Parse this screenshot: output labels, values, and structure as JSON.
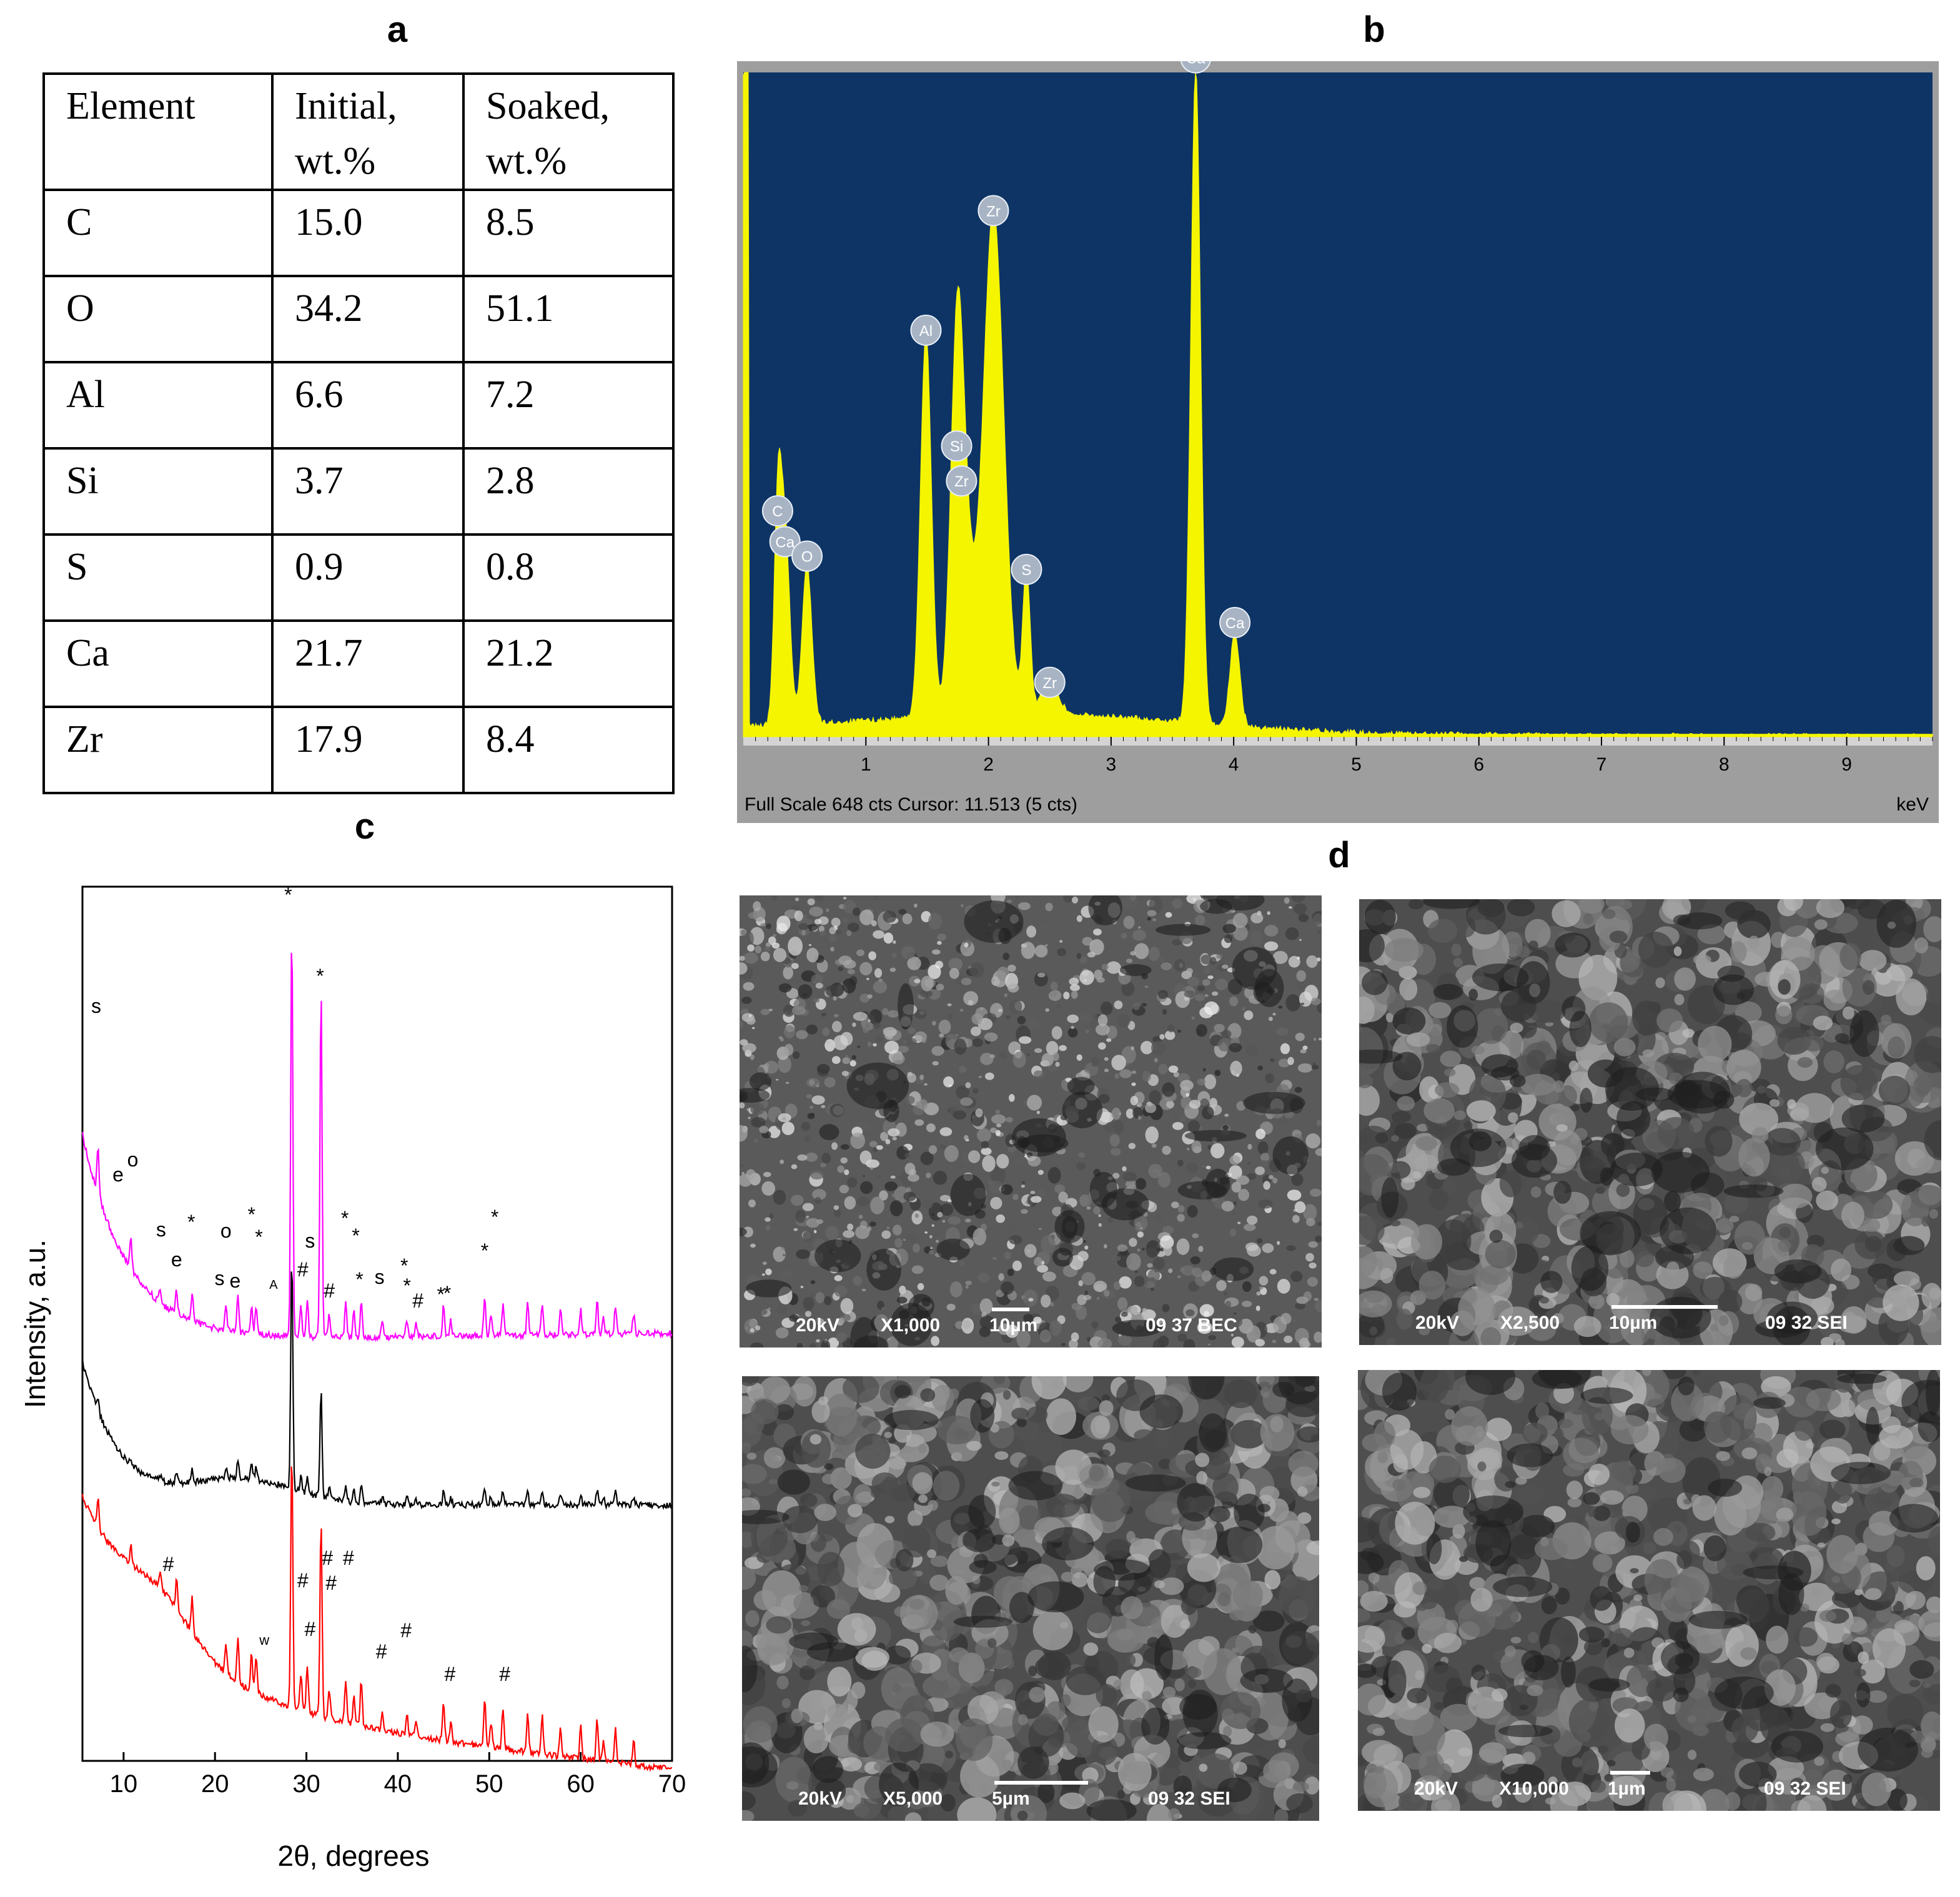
{
  "panel_labels": {
    "a": "a",
    "b": "b",
    "c": "c",
    "d": "d"
  },
  "table": {
    "headers": [
      "Element",
      "Initial,\nwt.%",
      "Soaked,\nwt.%"
    ],
    "rows": [
      [
        "C",
        "15.0",
        "8.5"
      ],
      [
        "O",
        "34.2",
        "51.1"
      ],
      [
        "Al",
        "6.6",
        "7.2"
      ],
      [
        "Si",
        "3.7",
        "2.8"
      ],
      [
        "S",
        "0.9",
        "0.8"
      ],
      [
        "Ca",
        "21.7",
        "21.2"
      ],
      [
        "Zr",
        "17.9",
        "8.4"
      ]
    ]
  },
  "chart_data": [
    {
      "type": "line",
      "panel": "b",
      "title": "",
      "xlabel": "keV",
      "status_text": "Full Scale 648 cts Cursor: 11.513  (5 cts)",
      "xlim": [
        0,
        9.7
      ],
      "x_ticks": [
        "1",
        "2",
        "3",
        "4",
        "5",
        "6",
        "7",
        "8",
        "9"
      ],
      "colors": {
        "plot_bg": "#0d3465",
        "spectrum": "#f5f500",
        "frame": "#9e9e9e"
      },
      "peaks": [
        {
          "label": "C",
          "kev": 0.28,
          "height": 0.295
        },
        {
          "label": "Ca",
          "kev": 0.34,
          "height": 0.29
        },
        {
          "label": "O",
          "kev": 0.52,
          "height": 0.24
        },
        {
          "label": "Al",
          "kev": 1.49,
          "height": 0.58
        },
        {
          "label": "Si",
          "kev": 1.74,
          "height": 0.34
        },
        {
          "label": "Zr",
          "kev": 1.78,
          "height": 0.34
        },
        {
          "label": "Zr",
          "kev": 2.04,
          "height": 0.76
        },
        {
          "label": "S",
          "kev": 2.31,
          "height": 0.22
        },
        {
          "label": "Zr",
          "kev": 2.5,
          "height": 0.05
        },
        {
          "label": "Ca",
          "kev": 3.69,
          "height": 0.99
        },
        {
          "label": "Ca",
          "kev": 4.01,
          "height": 0.14
        }
      ]
    },
    {
      "type": "line",
      "panel": "c",
      "title": "",
      "xlabel": "2θ, degrees",
      "ylabel": "Intensity, a.u.",
      "xlim": [
        5.5,
        70
      ],
      "x_ticks": [
        10,
        20,
        30,
        40,
        50,
        60,
        70
      ],
      "series": [
        {
          "color": "#ff00ff",
          "role": "top"
        },
        {
          "color": "#000000",
          "role": "middle"
        },
        {
          "color": "#ff0000",
          "role": "bottom"
        }
      ],
      "peak_positions": [
        7.2,
        10.8,
        14.0,
        15.8,
        17.5,
        21.2,
        22.5,
        24.0,
        24.5,
        28.4,
        29.4,
        30.1,
        31.6,
        32.5,
        34.3,
        35.2,
        36.0,
        38.3,
        41.0,
        42.0,
        45.0,
        45.8,
        49.5,
        50.2,
        51.5,
        54.2,
        55.8,
        57.8,
        60.0,
        61.8,
        62.5,
        63.8,
        65.8
      ],
      "annotations_top": [
        {
          "text": "s",
          "x": 7.0
        },
        {
          "text": "e",
          "x": 9.4
        },
        {
          "text": "o",
          "x": 11.0
        },
        {
          "text": "s",
          "x": 14.1
        },
        {
          "text": "e",
          "x": 15.8
        },
        {
          "text": "*",
          "x": 17.4
        },
        {
          "text": "s",
          "x": 20.5
        },
        {
          "text": "o",
          "x": 21.2
        },
        {
          "text": "e",
          "x": 22.2
        },
        {
          "text": "*",
          "x": 24.0
        },
        {
          "text": "*",
          "x": 24.8
        },
        {
          "text": "A",
          "x": 26.4
        },
        {
          "text": "*",
          "x": 28.0
        },
        {
          "text": "#",
          "x": 29.6
        },
        {
          "text": "s",
          "x": 30.4
        },
        {
          "text": "*",
          "x": 31.5
        },
        {
          "text": "#",
          "x": 32.5
        },
        {
          "text": "*",
          "x": 34.2
        },
        {
          "text": "*",
          "x": 35.4
        },
        {
          "text": "*",
          "x": 35.8
        },
        {
          "text": "s",
          "x": 38.0
        },
        {
          "text": "*",
          "x": 40.7
        },
        {
          "text": "*",
          "x": 41.0
        },
        {
          "text": "#",
          "x": 42.2
        },
        {
          "text": "*",
          "x": 44.7
        },
        {
          "text": "*",
          "x": 45.4
        },
        {
          "text": "*",
          "x": 49.5
        },
        {
          "text": "*",
          "x": 50.6
        }
      ],
      "annotations_bottom": [
        {
          "text": "#",
          "x": 14.9
        },
        {
          "text": "w",
          "x": 25.4
        },
        {
          "text": "#",
          "x": 29.6
        },
        {
          "text": "#",
          "x": 30.4
        },
        {
          "text": "#",
          "x": 32.3
        },
        {
          "text": "#",
          "x": 32.7
        },
        {
          "text": "#",
          "x": 34.6
        },
        {
          "text": "#",
          "x": 38.2
        },
        {
          "text": "#",
          "x": 40.9
        },
        {
          "text": "#",
          "x": 45.7
        },
        {
          "text": "#",
          "x": 51.7
        }
      ]
    }
  ],
  "sem_images": [
    {
      "kv": "20kV",
      "mag": "X1,000",
      "scale": "10µm",
      "info": "09 37 BEC"
    },
    {
      "kv": "20kV",
      "mag": "X2,500",
      "scale": "10µm",
      "info": "09 32 SEI"
    },
    {
      "kv": "20kV",
      "mag": "X5,000",
      "scale": "5µm",
      "info": "09 32 SEI"
    },
    {
      "kv": "20kV",
      "mag": "X10,000",
      "scale": "1µm",
      "info": "09 32 SEI"
    }
  ]
}
